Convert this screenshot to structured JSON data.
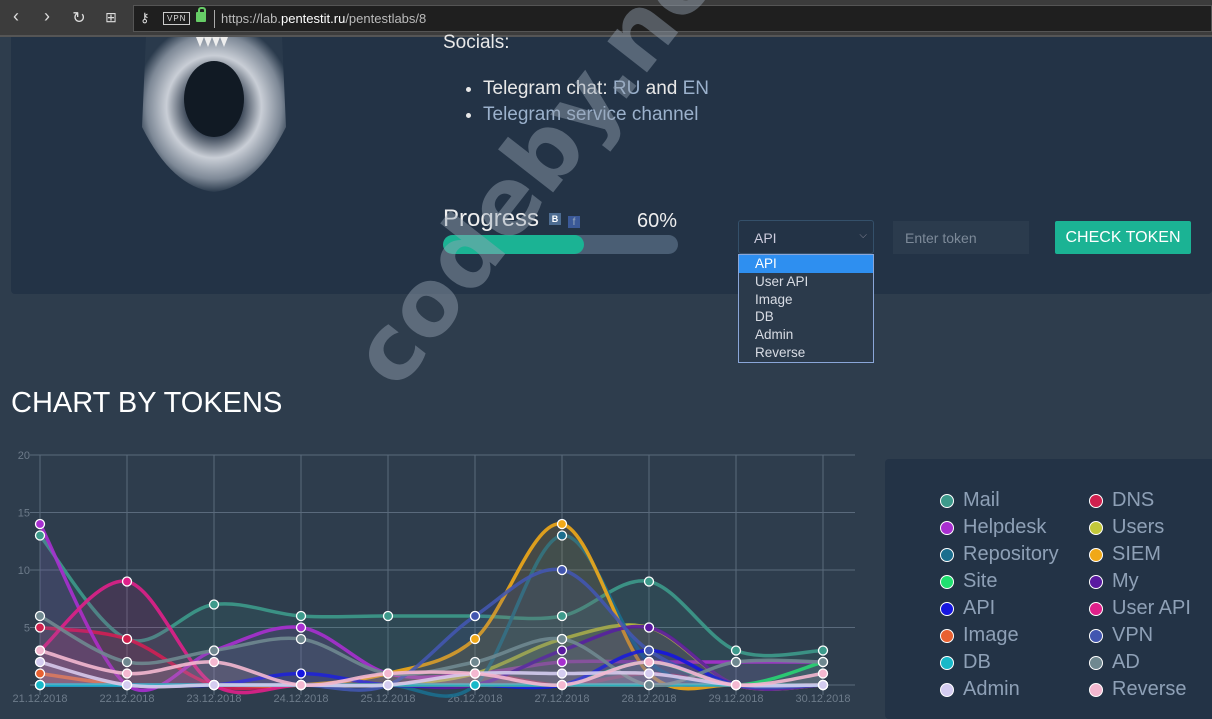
{
  "browser": {
    "url_prefix": "https://lab.",
    "url_domain": "pentestit.ru",
    "url_path": "/pentestlabs/8",
    "vpn": "VPN"
  },
  "socials": {
    "heading": "Socials:",
    "chat_label": "Telegram chat:",
    "ru": "RU",
    "and": "and",
    "en": "EN",
    "service_channel": "Telegram service channel"
  },
  "progress": {
    "label": "Progress",
    "vk": "B",
    "fb": "f",
    "percent_text": "60%",
    "value": 60
  },
  "token_form": {
    "selected": "API",
    "options": [
      "API",
      "User API",
      "Image",
      "DB",
      "Admin",
      "Reverse"
    ],
    "placeholder": "Enter token",
    "button": "CHECK TOKEN"
  },
  "watermark": "codeby.net",
  "chart_title": "CHART BY TOKENS",
  "chart_data": {
    "type": "line",
    "x": [
      "21.12.2018",
      "22.12.2018",
      "23.12.2018",
      "24.12.2018",
      "25.12.2018",
      "26.12.2018",
      "27.12.2018",
      "28.12.2018",
      "29.12.2018",
      "30.12.2018"
    ],
    "ylim": [
      0,
      20
    ],
    "yticks": [
      20,
      15,
      10,
      5
    ],
    "grid": true,
    "legend": "right",
    "series": [
      {
        "name": "Mail",
        "color": "#3d9a8b",
        "values": [
          13,
          4,
          7,
          6,
          6,
          6,
          6,
          9,
          3,
          3
        ]
      },
      {
        "name": "DNS",
        "color": "#d0204e",
        "values": [
          5,
          4,
          0,
          0,
          0,
          1,
          0,
          1,
          0,
          0
        ]
      },
      {
        "name": "Helpdesk",
        "color": "#a82fd0",
        "values": [
          14,
          0,
          3,
          5,
          1,
          1,
          2,
          2,
          2,
          2
        ]
      },
      {
        "name": "Users",
        "color": "#c3c83a",
        "values": [
          0,
          0,
          0,
          0,
          0,
          1,
          4,
          5,
          0,
          0
        ]
      },
      {
        "name": "Repository",
        "color": "#1b6e8e",
        "values": [
          0,
          0,
          0,
          0,
          0,
          0,
          13,
          2,
          0,
          0
        ]
      },
      {
        "name": "SIEM",
        "color": "#f0a818",
        "values": [
          0,
          0,
          0,
          0,
          1,
          4,
          14,
          1,
          0,
          0
        ]
      },
      {
        "name": "Site",
        "color": "#20e070",
        "values": [
          0,
          0,
          0,
          0,
          0,
          0,
          0,
          2,
          0,
          2
        ]
      },
      {
        "name": "My",
        "color": "#5a1aa0",
        "values": [
          0,
          0,
          0,
          0,
          0,
          0,
          3,
          5,
          0,
          0
        ]
      },
      {
        "name": "API",
        "color": "#1515e0",
        "values": [
          0,
          0,
          0,
          1,
          0,
          0,
          0,
          3,
          0,
          0
        ]
      },
      {
        "name": "User API",
        "color": "#e0208a",
        "values": [
          3,
          9,
          0,
          0,
          0,
          0,
          0,
          0,
          0,
          0
        ]
      },
      {
        "name": "Image",
        "color": "#e86030",
        "values": [
          1,
          0,
          0,
          0,
          0,
          0,
          0,
          0,
          0,
          0
        ]
      },
      {
        "name": "VPN",
        "color": "#4256b0",
        "values": [
          0,
          0,
          0,
          0,
          0,
          6,
          10,
          3,
          0,
          0
        ]
      },
      {
        "name": "DB",
        "color": "#18b8c8",
        "values": [
          0,
          0,
          0,
          0,
          0,
          0,
          0,
          0,
          0,
          0
        ]
      },
      {
        "name": "AD",
        "color": "#6f8890",
        "values": [
          6,
          2,
          3,
          4,
          1,
          2,
          4,
          0,
          2,
          2
        ]
      },
      {
        "name": "Admin",
        "color": "#d4ccf0",
        "values": [
          2,
          0,
          0,
          0,
          0,
          1,
          1,
          1,
          0,
          0
        ]
      },
      {
        "name": "Reverse",
        "color": "#f4b8d0",
        "values": [
          3,
          1,
          2,
          0,
          1,
          1,
          0,
          2,
          0,
          1
        ]
      }
    ]
  }
}
